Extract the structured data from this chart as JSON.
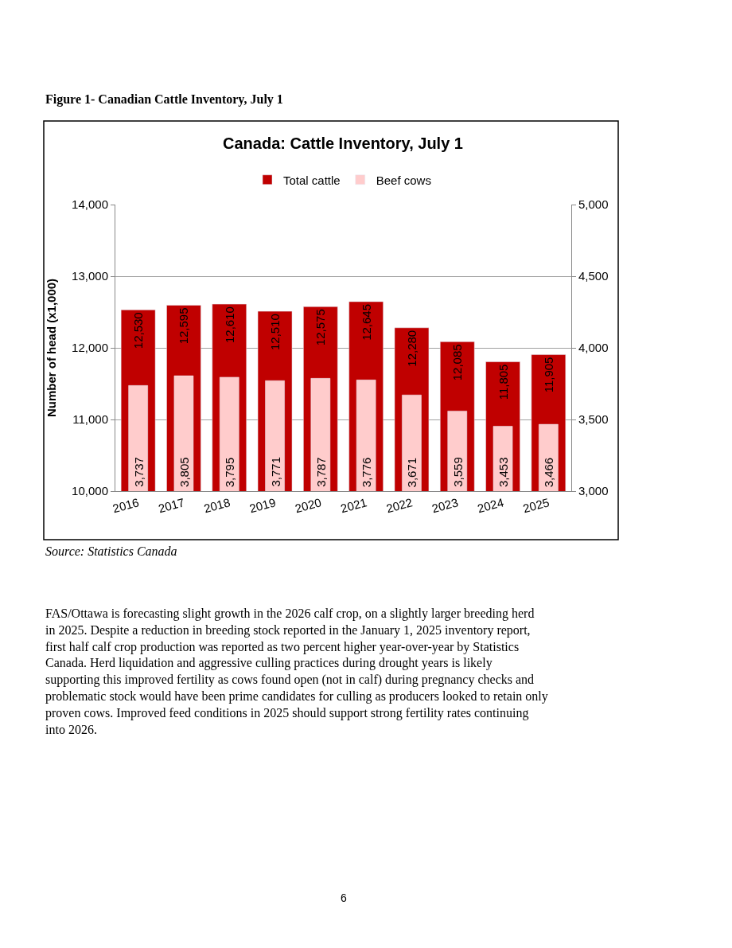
{
  "chart_data": {
    "type": "bar",
    "title": "Canada: Cattle Inventory, July 1",
    "categories": [
      "2016",
      "2017",
      "2018",
      "2019",
      "2020",
      "2021",
      "2022",
      "2023",
      "2024",
      "2025"
    ],
    "series": [
      {
        "name": "Total cattle",
        "color": "#c00000",
        "axis": "y",
        "values": [
          12530,
          12595,
          12610,
          12510,
          12575,
          12645,
          12280,
          12085,
          11805,
          11905
        ],
        "value_labels": [
          "12,530",
          "12,595",
          "12,610",
          "12,510",
          "12,575",
          "12,645",
          "12,280",
          "12,085",
          "11,805",
          "11,905"
        ]
      },
      {
        "name": "Beef cows",
        "color": "#ffcccc",
        "axis": "y2",
        "values": [
          3737,
          3805,
          3795,
          3771,
          3787,
          3776,
          3671,
          3559,
          3453,
          3466
        ],
        "value_labels": [
          "3,737",
          "3,805",
          "3,795",
          "3,771",
          "3,787",
          "3,776",
          "3,671",
          "3,559",
          "3,453",
          "3,466"
        ]
      }
    ],
    "ylabel": "Number of head (x1,000)",
    "ylim": [
      10000,
      14000
    ],
    "yticks": [
      {
        "value": 10000,
        "label": "10,000"
      },
      {
        "value": 11000,
        "label": "11,000"
      },
      {
        "value": 12000,
        "label": "12,000"
      },
      {
        "value": 13000,
        "label": "13,000"
      },
      {
        "value": 14000,
        "label": "14,000"
      }
    ],
    "y2lim": [
      3000,
      5000
    ],
    "y2ticks": [
      {
        "value": 3000,
        "label": "3,000"
      },
      {
        "value": 3500,
        "label": "3,500"
      },
      {
        "value": 4000,
        "label": "4,000"
      },
      {
        "value": 4500,
        "label": "4,500"
      },
      {
        "value": 5000,
        "label": "5,000"
      }
    ],
    "grid": "y",
    "legend": "top",
    "annotations": [
      "Figure 1- Canadian Cattle Inventory, July 1",
      "Source: Statistics Canada",
      "FAS/Ottawa is forecasting slight growth in the 2026 calf crop, on a slightly larger breeding herd in 2025. Despite a reduction in breeding stock reported in the January 1, 2025 inventory report, first half calf crop production was reported as two percent higher year-over-year by Statistics Canada. Herd liquidation and aggressive culling practices during drought years is likely supporting this improved fertility as cows found open (not in calf) during pregnancy checks and problematic stock would have been prime candidates for culling as producers looked to retain only proven cows. Improved feed conditions in 2025 should support strong fertility rates continuing into 2026.",
      "6"
    ]
  }
}
